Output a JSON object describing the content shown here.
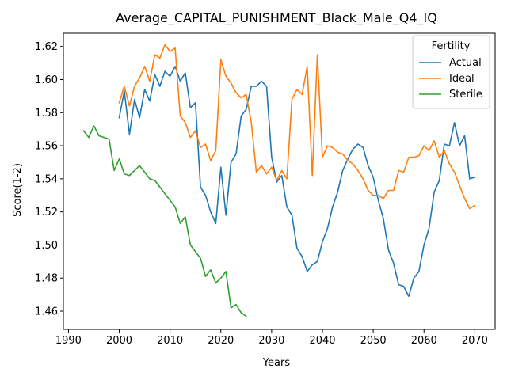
{
  "chart_data": {
    "type": "line",
    "title": "Average_CAPITAL_PUNISHMENT_Black_Male_Q4_IQ",
    "xlabel": "Years",
    "ylabel": "Score(1-2)",
    "xlim": [
      1989,
      2074
    ],
    "ylim": [
      1.449,
      1.628
    ],
    "xticks": [
      1990,
      2000,
      2010,
      2020,
      2030,
      2040,
      2050,
      2060,
      2070
    ],
    "yticks": [
      1.46,
      1.48,
      1.5,
      1.52,
      1.54,
      1.56,
      1.58,
      1.6,
      1.62
    ],
    "xtick_labels": [
      "1990",
      "2000",
      "2010",
      "2020",
      "2030",
      "2040",
      "2050",
      "2060",
      "2070"
    ],
    "ytick_labels": [
      "1.46",
      "1.48",
      "1.50",
      "1.52",
      "1.54",
      "1.56",
      "1.58",
      "1.60",
      "1.62"
    ],
    "grid": false,
    "legend": {
      "title": "Fertility",
      "placement": "top-right"
    },
    "series": [
      {
        "name": "Actual",
        "color": "#1f77b4",
        "x": [
          2000,
          2001,
          2002,
          2003,
          2004,
          2005,
          2006,
          2007,
          2008,
          2009,
          2010,
          2011,
          2012,
          2013,
          2014,
          2015,
          2016,
          2017,
          2018,
          2019,
          2020,
          2021,
          2022,
          2023,
          2024,
          2025,
          2026,
          2027,
          2028,
          2029,
          2030,
          2031,
          2032,
          2033,
          2034,
          2035,
          2036,
          2037,
          2038,
          2039,
          2040,
          2041,
          2042,
          2043,
          2044,
          2045,
          2046,
          2047,
          2048,
          2049,
          2050,
          2051,
          2052,
          2053,
          2054,
          2055,
          2056,
          2057,
          2058,
          2059,
          2060,
          2061,
          2062,
          2063,
          2064,
          2065,
          2066,
          2067,
          2068,
          2069,
          2070
        ],
        "y": [
          1.577,
          1.593,
          1.567,
          1.588,
          1.577,
          1.594,
          1.587,
          1.603,
          1.596,
          1.605,
          1.602,
          1.608,
          1.599,
          1.604,
          1.583,
          1.586,
          1.535,
          1.53,
          1.52,
          1.513,
          1.547,
          1.518,
          1.55,
          1.555,
          1.578,
          1.582,
          1.596,
          1.596,
          1.599,
          1.596,
          1.553,
          1.538,
          1.542,
          1.523,
          1.518,
          1.498,
          1.493,
          1.484,
          1.488,
          1.49,
          1.502,
          1.51,
          1.523,
          1.532,
          1.545,
          1.552,
          1.558,
          1.561,
          1.559,
          1.548,
          1.541,
          1.527,
          1.516,
          1.497,
          1.489,
          1.476,
          1.475,
          1.469,
          1.48,
          1.484,
          1.5,
          1.51,
          1.532,
          1.539,
          1.561,
          1.56,
          1.574,
          1.56,
          1.566,
          1.54,
          1.541
        ]
      },
      {
        "name": "Ideal",
        "color": "#ff7f0e",
        "x": [
          2000,
          2001,
          2002,
          2003,
          2004,
          2005,
          2006,
          2007,
          2008,
          2009,
          2010,
          2011,
          2012,
          2013,
          2014,
          2015,
          2016,
          2017,
          2018,
          2019,
          2020,
          2021,
          2022,
          2023,
          2024,
          2025,
          2026,
          2027,
          2028,
          2029,
          2030,
          2031,
          2032,
          2033,
          2034,
          2035,
          2036,
          2037,
          2038,
          2039,
          2040,
          2041,
          2042,
          2043,
          2044,
          2045,
          2046,
          2047,
          2048,
          2049,
          2050,
          2051,
          2052,
          2053,
          2054,
          2055,
          2056,
          2057,
          2058,
          2059,
          2060,
          2061,
          2062,
          2063,
          2064,
          2065,
          2066,
          2067,
          2068,
          2069,
          2070
        ],
        "y": [
          1.586,
          1.596,
          1.584,
          1.596,
          1.601,
          1.608,
          1.599,
          1.615,
          1.613,
          1.621,
          1.617,
          1.619,
          1.578,
          1.574,
          1.565,
          1.569,
          1.559,
          1.561,
          1.551,
          1.557,
          1.612,
          1.602,
          1.598,
          1.592,
          1.589,
          1.591,
          1.574,
          1.544,
          1.548,
          1.543,
          1.547,
          1.539,
          1.545,
          1.54,
          1.588,
          1.594,
          1.591,
          1.608,
          1.542,
          1.615,
          1.553,
          1.56,
          1.559,
          1.556,
          1.555,
          1.551,
          1.549,
          1.545,
          1.54,
          1.533,
          1.53,
          1.53,
          1.528,
          1.533,
          1.533,
          1.545,
          1.544,
          1.553,
          1.553,
          1.554,
          1.56,
          1.557,
          1.563,
          1.553,
          1.557,
          1.549,
          1.544,
          1.536,
          1.528,
          1.522,
          1.524
        ]
      },
      {
        "name": "Sterile",
        "color": "#2ca02c",
        "x": [
          1993,
          1994,
          1995,
          1996,
          1997,
          1998,
          1999,
          2000,
          2001,
          2002,
          2003,
          2004,
          2005,
          2006,
          2007,
          2008,
          2009,
          2010,
          2011,
          2012,
          2013,
          2014,
          2015,
          2016,
          2017,
          2018,
          2019,
          2020,
          2021,
          2022,
          2023,
          2024,
          2025
        ],
        "y": [
          1.569,
          1.565,
          1.572,
          1.566,
          1.565,
          1.564,
          1.545,
          1.552,
          1.543,
          1.542,
          1.545,
          1.548,
          1.544,
          1.54,
          1.539,
          1.535,
          1.531,
          1.527,
          1.523,
          1.513,
          1.517,
          1.5,
          1.496,
          1.492,
          1.481,
          1.485,
          1.477,
          1.48,
          1.484,
          1.462,
          1.464,
          1.459,
          1.457
        ]
      }
    ]
  }
}
